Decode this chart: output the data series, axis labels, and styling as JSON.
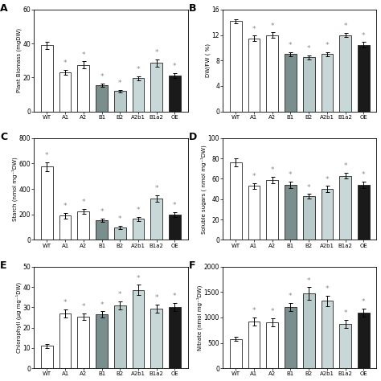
{
  "categories": [
    "WT",
    "A1",
    "A2",
    "B1",
    "B2",
    "A2b1",
    "B1a2",
    "OE"
  ],
  "panel_A": {
    "title": "A",
    "ylabel": "Plant Biomass (mgDW)",
    "values": [
      39,
      23,
      27.5,
      15.5,
      12,
      19.5,
      28.5,
      21
    ],
    "errors": [
      2.0,
      1.5,
      2.0,
      1.0,
      0.8,
      1.2,
      2.0,
      1.5
    ],
    "ylim": [
      0,
      60
    ],
    "yticks": [
      0,
      20,
      40,
      60
    ],
    "star_wt": false
  },
  "panel_B": {
    "title": "B",
    "ylabel": "DW/FW ( %)",
    "values": [
      14.2,
      11.5,
      12.0,
      9.0,
      8.5,
      9.0,
      12.0,
      10.5
    ],
    "errors": [
      0.3,
      0.4,
      0.4,
      0.3,
      0.3,
      0.3,
      0.3,
      0.4
    ],
    "ylim": [
      0,
      16
    ],
    "yticks": [
      0,
      4,
      8,
      12,
      16
    ],
    "star_wt": false
  },
  "panel_C": {
    "title": "C",
    "ylabel": "Starch (nmol mg⁻¹DW)",
    "values": [
      575,
      190,
      225,
      155,
      100,
      165,
      325,
      200
    ],
    "errors": [
      35,
      20,
      20,
      15,
      12,
      15,
      25,
      18
    ],
    "ylim": [
      0,
      800
    ],
    "yticks": [
      0,
      200,
      400,
      600,
      800
    ],
    "star_wt": true
  },
  "panel_D": {
    "title": "D",
    "ylabel": "Soluble sugars ( nmol mg⁻¹DW)",
    "values": [
      76,
      53,
      59,
      54,
      43,
      50,
      63,
      54
    ],
    "errors": [
      4,
      3,
      3,
      3,
      2,
      3,
      3,
      3
    ],
    "ylim": [
      0,
      100
    ],
    "yticks": [
      0,
      20,
      40,
      60,
      80,
      100
    ],
    "star_wt": false
  },
  "panel_E": {
    "title": "E",
    "ylabel": "Chlorophyll (µg mg⁻¹DW)",
    "values": [
      11,
      27,
      25.5,
      26.5,
      31,
      38.5,
      29.5,
      30
    ],
    "errors": [
      1.0,
      2.0,
      1.5,
      1.5,
      2.0,
      2.5,
      2.0,
      2.0
    ],
    "ylim": [
      0,
      50
    ],
    "yticks": [
      0,
      10,
      20,
      30,
      40,
      50
    ],
    "star_wt": false
  },
  "panel_F": {
    "title": "F",
    "ylabel": "Nitrate (nmol mg⁻¹DW)",
    "values": [
      575,
      925,
      900,
      1200,
      1475,
      1325,
      875,
      1100
    ],
    "errors": [
      40,
      80,
      80,
      80,
      120,
      100,
      80,
      80
    ],
    "ylim": [
      0,
      2000
    ],
    "yticks": [
      0,
      500,
      1000,
      1500,
      2000
    ],
    "star_wt": false
  },
  "bar_colors": [
    "#ffffff",
    "#ffffff",
    "#ffffff",
    "#7a8e8e",
    "#b8caca",
    "#c8d8d8",
    "#c8d8d8",
    "#1a1a1a"
  ],
  "edge_color": "#222222",
  "star_color": "#888888",
  "background": "white"
}
